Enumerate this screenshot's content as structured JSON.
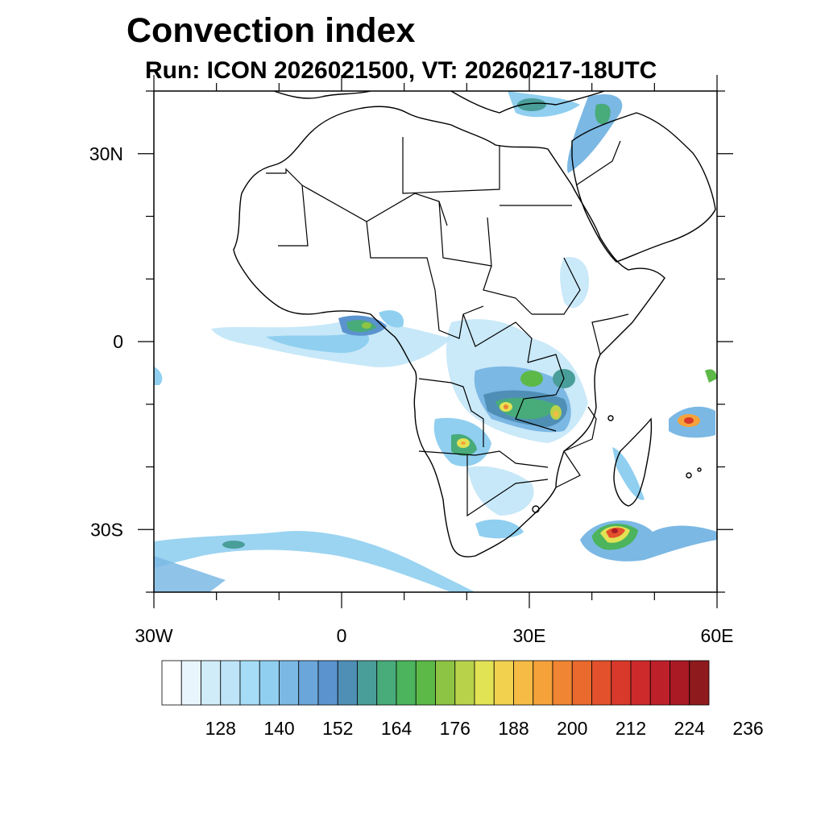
{
  "title": "Convection index",
  "subtitle": "Run: ICON 2026021500,  VT: 20260217-18UTC",
  "map": {
    "extent": {
      "lon_min": -30,
      "lon_max": 60,
      "lat_min": -40,
      "lat_max": 40
    },
    "y_ticks": [
      {
        "lat": 30,
        "label": "30N"
      },
      {
        "lat": 0,
        "label": "0"
      },
      {
        "lat": -30,
        "label": "30S"
      }
    ],
    "x_ticks": [
      {
        "lon": -30,
        "label": "30W"
      },
      {
        "lon": 0,
        "label": "0"
      },
      {
        "lon": 30,
        "label": "30E"
      },
      {
        "lon": 60,
        "label": "60E"
      }
    ],
    "minor_lat": [
      40,
      20,
      10,
      -10,
      -20,
      -40
    ],
    "minor_lon": [
      -20,
      -10,
      10,
      20,
      40,
      50
    ]
  },
  "colorbar": {
    "colors": [
      "#ffffff",
      "#e8f5fc",
      "#d1ecf9",
      "#bde4f7",
      "#a6dcf5",
      "#90cff0",
      "#7bb8e4",
      "#6aa6da",
      "#5b93cf",
      "#4f8fb6",
      "#4a9e99",
      "#48ab7a",
      "#4bb45c",
      "#5cb947",
      "#8dc443",
      "#b8d24a",
      "#e2e255",
      "#f1d14e",
      "#f5bb44",
      "#f5a23b",
      "#f08533",
      "#ea6a2e",
      "#e2512b",
      "#d9392b",
      "#cd2a2c",
      "#bd2029",
      "#a91a24",
      "#8e1a1d"
    ],
    "labels": [
      "128",
      "140",
      "152",
      "164",
      "176",
      "188",
      "200",
      "212",
      "224",
      "236"
    ]
  }
}
